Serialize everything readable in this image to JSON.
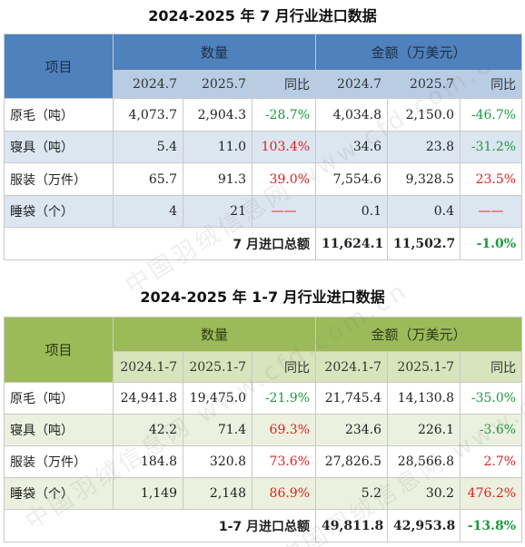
{
  "table1": {
    "title": "2024-2025 年 7 月行业进口数据",
    "item_header": "项目",
    "qty_header": "数量",
    "amt_header": "金额（万美元）",
    "sub_headers": [
      "2024.7",
      "2025.7",
      "同比",
      "2024.7",
      "2025.7",
      "同比"
    ],
    "rows": [
      {
        "item": "原毛（吨）",
        "q1": "4,073.7",
        "q2": "2,904.3",
        "qy": "-28.7%",
        "a1": "4,034.8",
        "a2": "2,150.0",
        "ay": "-46.7%"
      },
      {
        "item": "寝具（吨）",
        "q1": "5.4",
        "q2": "11.0",
        "qy": "103.4%",
        "a1": "34.6",
        "a2": "23.8",
        "ay": "-31.2%"
      },
      {
        "item": "服装（万件）",
        "q1": "65.7",
        "q2": "91.3",
        "qy": "39.0%",
        "a1": "7,554.6",
        "a2": "9,328.5",
        "ay": "23.5%"
      },
      {
        "item": "睡袋（个）",
        "q1": "4",
        "q2": "21",
        "qy": "——",
        "a1": "0.1",
        "a2": "0.4",
        "ay": "——"
      }
    ],
    "total": {
      "label": "7 月进口总额",
      "a1": "11,624.1",
      "a2": "11,502.7",
      "ay": "-1.0%"
    }
  },
  "table2": {
    "title": "2024-2025 年 1-7 月行业进口数据",
    "item_header": "项目",
    "qty_header": "数量",
    "amt_header": "金额（万美元）",
    "sub_headers": [
      "2024.1-7",
      "2025.1-7",
      "同比",
      "2024.1-7",
      "2025.1-7",
      "同比"
    ],
    "rows": [
      {
        "item": "原毛（吨）",
        "q1": "24,941.8",
        "q2": "19,475.0",
        "qy": "-21.9%",
        "a1": "21,745.4",
        "a2": "14,130.8",
        "ay": "-35.0%"
      },
      {
        "item": "寝具（吨）",
        "q1": "42.2",
        "q2": "71.4",
        "qy": "69.3%",
        "a1": "234.6",
        "a2": "226.1",
        "ay": "-3.6%"
      },
      {
        "item": "服装（万件）",
        "q1": "184.8",
        "q2": "320.8",
        "qy": "73.6%",
        "a1": "27,826.5",
        "a2": "28,566.8",
        "ay": "2.7%"
      },
      {
        "item": "睡袋（个）",
        "q1": "1,149",
        "q2": "2,148",
        "qy": "86.9%",
        "a1": "5.2",
        "a2": "30.2",
        "ay": "476.2%"
      }
    ],
    "total": {
      "label": "1-7 月进口总额",
      "a1": "49,811.8",
      "a2": "42,953.8",
      "ay": "-13.8%"
    }
  },
  "watermark": {
    "text": "中国羽绒信息网 www.cfd.com.cn"
  },
  "colors": {
    "blue_header": "#4f81bd",
    "green_header": "#9bbb59",
    "negative": "#1a9c3c",
    "positive": "#e02020"
  }
}
